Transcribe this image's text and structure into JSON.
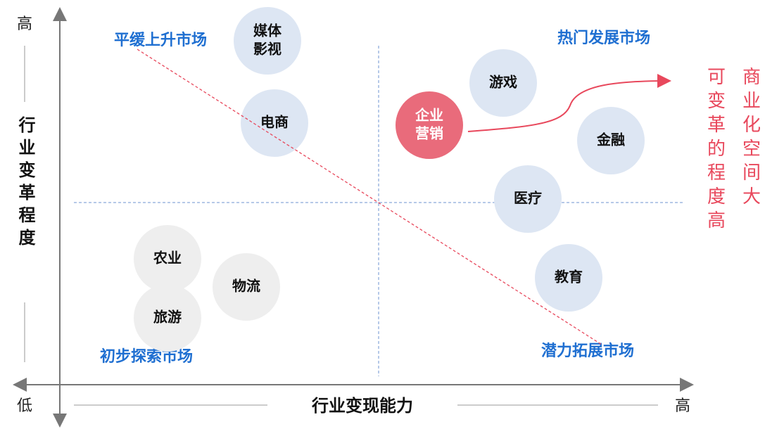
{
  "axes": {
    "y_label": "行业变革程度",
    "y_high": "高",
    "x_label": "行业变现能力",
    "x_low": "低",
    "x_high": "高"
  },
  "quadrants": {
    "top_left": "平缓上升市场",
    "top_right": "热门发展市场",
    "bottom_left": "初步探索市场",
    "bottom_right": "潜力拓展市场"
  },
  "bubbles": [
    {
      "lines": [
        "媒体",
        "影视"
      ]
    },
    {
      "lines": [
        "电商"
      ]
    },
    {
      "lines": [
        "游戏"
      ]
    },
    {
      "lines": [
        "企业",
        "营销"
      ]
    },
    {
      "lines": [
        "金融"
      ]
    },
    {
      "lines": [
        "医疗"
      ]
    },
    {
      "lines": [
        "教育"
      ]
    },
    {
      "lines": [
        "农业"
      ]
    },
    {
      "lines": [
        "旅游"
      ]
    },
    {
      "lines": [
        "物流"
      ]
    }
  ],
  "side_notes": [
    "商业化空间大",
    "可变革的程度高"
  ]
}
